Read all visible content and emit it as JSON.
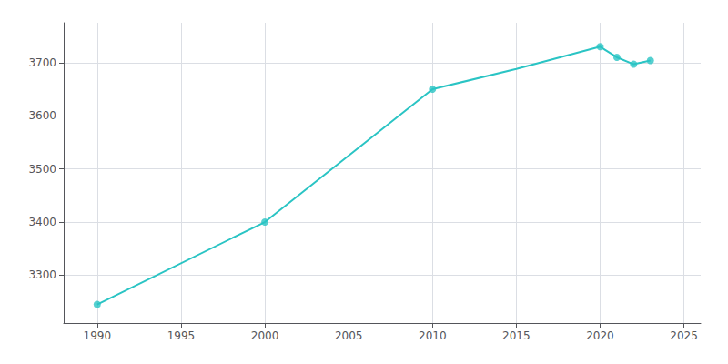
{
  "chart_data": {
    "type": "line",
    "series": [
      {
        "type": "line",
        "color": "#2ac4c4",
        "marker": "none",
        "x": [
          1990,
          2000,
          2010,
          2015,
          2020,
          2021,
          2022,
          2023
        ],
        "values": [
          3245,
          3400,
          3650,
          3688,
          3730,
          3710,
          3697,
          3704
        ]
      },
      {
        "type": "scatter",
        "color": "#2ac4c4",
        "marker": "circle",
        "x": [
          1990,
          2000,
          2010,
          2020,
          2021,
          2022,
          2023
        ],
        "values": [
          3245,
          3400,
          3650,
          3730,
          3710,
          3697,
          3704
        ]
      }
    ],
    "xlim": [
      1988,
      2026
    ],
    "xticks": [
      1990,
      1995,
      2000,
      2005,
      2010,
      2015,
      2020,
      2025
    ],
    "ylim": [
      3210,
      3775
    ],
    "yticks": [
      3300,
      3400,
      3500,
      3600,
      3700
    ],
    "grid": true
  }
}
